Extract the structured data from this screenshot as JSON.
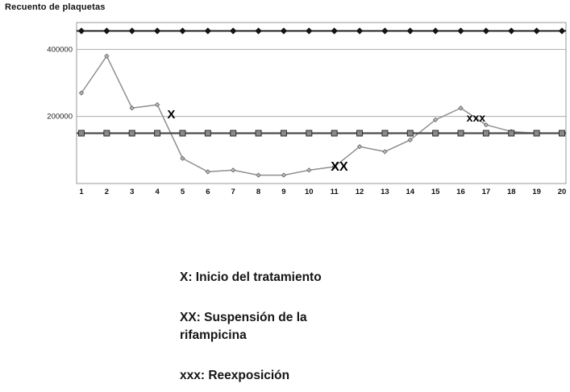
{
  "title": "Recuento de plaquetas",
  "chart_data": {
    "type": "line",
    "x": [
      1,
      2,
      3,
      4,
      5,
      6,
      7,
      8,
      9,
      10,
      11,
      12,
      13,
      14,
      15,
      16,
      17,
      18,
      19,
      20
    ],
    "ymax": 480000,
    "yticks": [
      {
        "value": 400000,
        "label": "400000"
      },
      {
        "value": 200000,
        "label": "200000"
      }
    ],
    "grid": true,
    "legend_position": "none",
    "series": [
      {
        "name": "platelet-count",
        "marker": "diamond",
        "color": "#8f8f8f",
        "marker_fill": "#c2c2c2",
        "marker_stroke": "#6e6e6e",
        "width": 1.5,
        "marker_size": 2.5,
        "values": [
          270000,
          380000,
          225000,
          235000,
          75000,
          35000,
          40000,
          25000,
          25000,
          40000,
          50000,
          110000,
          95000,
          130000,
          190000,
          225000,
          175000,
          155000,
          150000,
          150000
        ]
      },
      {
        "name": "upper-reference-line",
        "marker": "diamond",
        "color": "#141414",
        "marker_fill": "#141414",
        "marker_stroke": "#141414",
        "width": 1.8,
        "marker_size": 3.5,
        "constant": 455000
      },
      {
        "name": "lower-reference-line",
        "marker": "square",
        "color": "#4a4a4a",
        "marker_fill": "#8a8a8a",
        "marker_stroke": "#2e2e2e",
        "width": 2.2,
        "marker_size": 3.5,
        "constant": 150000
      }
    ],
    "annotations": [
      {
        "label": "X",
        "x": 4.55,
        "y": 195000,
        "size": 15
      },
      {
        "label": "XX",
        "x": 11.2,
        "y": 38000,
        "size": 16
      },
      {
        "label": "xxx",
        "x": 16.6,
        "y": 185000,
        "size": 14
      }
    ]
  },
  "legend": {
    "items": [
      {
        "text": "X: Inicio del tratamiento"
      },
      {
        "text": "XX: Suspensión de la\nrifampicina"
      },
      {
        "text": "xxx: Reexposición"
      }
    ]
  }
}
